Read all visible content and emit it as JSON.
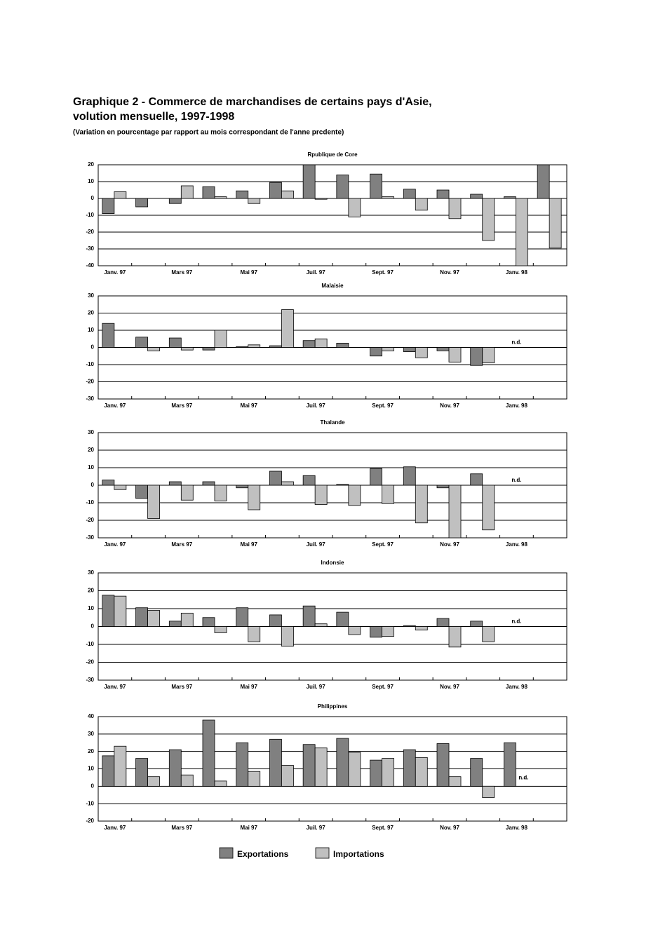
{
  "title_lines": [
    "Graphique 2 - Commerce de marchandises de certains pays d'Asie,",
    "volution mensuelle, 1997-1998"
  ],
  "note": "(Variation en pourcentage par rapport au mois correspondant de l'anne prcdente)",
  "chart_data": [
    {
      "type": "bar",
      "title": "Rpublique de Core",
      "categories": [
        "Janv. 97",
        null,
        "Mars 97",
        null,
        "Mai 97",
        null,
        "Juil. 97",
        null,
        "Sept. 97",
        null,
        "Nov. 97",
        null,
        "Janv. 98",
        null
      ],
      "series": [
        {
          "name": "Exportations",
          "color": "#808080",
          "values": [
            -9,
            -5,
            -3,
            7,
            4.5,
            9.5,
            20,
            14,
            14.5,
            5.5,
            5,
            2.5,
            1,
            20
          ]
        },
        {
          "name": "Importations",
          "color": "#c0c0c0",
          "values": [
            4,
            null,
            7.5,
            1,
            -3,
            4.5,
            -0.5,
            -11,
            1,
            -7,
            -12,
            -25,
            -40,
            -29.5
          ]
        }
      ],
      "ylim": [
        -40,
        20
      ],
      "yticks": [
        -40,
        -30,
        -20,
        -10,
        0,
        10,
        20
      ],
      "grid": true
    },
    {
      "type": "bar",
      "title": "Malaisie",
      "categories": [
        "Janv. 97",
        null,
        "Mars 97",
        null,
        "Mai 97",
        null,
        "Juil. 97",
        null,
        "Sept. 97",
        null,
        "Nov. 97",
        null,
        "Janv. 98",
        null
      ],
      "series": [
        {
          "color": "#808080",
          "values": [
            14,
            6,
            5.5,
            -1.5,
            0.5,
            1,
            4,
            2.5,
            -5,
            -2.5,
            -2,
            -10.5,
            null,
            null
          ]
        },
        {
          "color": "#c0c0c0",
          "values": [
            null,
            -2,
            -1.5,
            10,
            1.5,
            22,
            5,
            null,
            -2,
            -6,
            -8.5,
            -9,
            null,
            null
          ]
        }
      ],
      "ylim": [
        -30,
        30
      ],
      "yticks": [
        -30,
        -20,
        -10,
        0,
        10,
        20,
        30
      ],
      "grid": true,
      "annotation": "n.d."
    },
    {
      "type": "bar",
      "title": "Thalande",
      "categories": [
        "Janv. 97",
        null,
        "Mars 97",
        null,
        "Mai 97",
        null,
        "Juil. 97",
        null,
        "Sept. 97",
        null,
        "Nov. 97",
        null,
        "Janv. 98",
        null
      ],
      "series": [
        {
          "color": "#808080",
          "values": [
            3,
            -7.5,
            2,
            2,
            -1.5,
            8,
            5.5,
            0.5,
            9.5,
            10.5,
            -1.5,
            6.5,
            null,
            null
          ]
        },
        {
          "color": "#c0c0c0",
          "values": [
            -2.5,
            -19,
            -8.5,
            -9,
            -14,
            2,
            -11,
            -11.5,
            -10.5,
            -21.5,
            -30,
            -25.5,
            null,
            null
          ]
        }
      ],
      "ylim": [
        -30,
        30
      ],
      "yticks": [
        -30,
        -20,
        -10,
        0,
        10,
        20,
        30
      ],
      "grid": true,
      "annotation": "n.d."
    },
    {
      "type": "bar",
      "title": "Indonsie",
      "categories": [
        "Janv. 97",
        null,
        "Mars 97",
        null,
        "Mai 97",
        null,
        "Juil. 97",
        null,
        "Sept. 97",
        null,
        "Nov. 97",
        null,
        "Janv. 98",
        null
      ],
      "series": [
        {
          "color": "#808080",
          "values": [
            17.5,
            10.5,
            3,
            5,
            10.5,
            6.5,
            11.5,
            8,
            -6,
            0.5,
            4.5,
            3,
            null,
            null
          ]
        },
        {
          "color": "#c0c0c0",
          "values": [
            17,
            9,
            7.5,
            -3.5,
            -8.5,
            -11,
            1.5,
            -4.5,
            -5.5,
            -2,
            -11.5,
            -8.5,
            null,
            null
          ]
        }
      ],
      "ylim": [
        -30,
        30
      ],
      "yticks": [
        -30,
        -20,
        -10,
        0,
        10,
        20,
        30
      ],
      "grid": true,
      "annotation": "n.d."
    },
    {
      "type": "bar",
      "title": "Philippines",
      "categories": [
        "Janv. 97",
        null,
        "Mars 97",
        null,
        "Mai 97",
        null,
        "Juil. 97",
        null,
        "Sept. 97",
        null,
        "Nov. 97",
        null,
        "Janv. 98",
        null
      ],
      "series": [
        {
          "color": "#808080",
          "values": [
            17.5,
            16,
            21,
            38,
            25,
            27,
            24,
            27.5,
            15,
            21,
            24.5,
            16,
            25,
            null
          ]
        },
        {
          "color": "#c0c0c0",
          "values": [
            23,
            5.5,
            6.5,
            3,
            8.5,
            12,
            22,
            19.5,
            16,
            16.5,
            5.5,
            -6.5,
            null,
            null
          ]
        }
      ],
      "ylim": [
        -20,
        40
      ],
      "yticks": [
        -20,
        -10,
        0,
        10,
        20,
        30,
        40
      ],
      "grid": true,
      "annotation": "n.d."
    }
  ]
}
